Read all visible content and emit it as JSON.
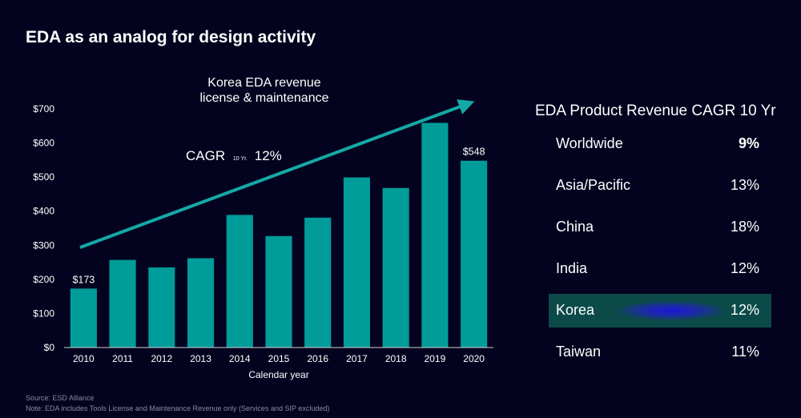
{
  "page": {
    "title": "EDA as an analog for design activity",
    "footnotes": [
      "Source: ESD Alliance",
      "Note: EDA includes Tools License and Maintenance Revenue only (Services and SIP excluded)"
    ]
  },
  "chart_data": {
    "type": "bar",
    "title": "",
    "xlabel": "Calendar year",
    "ylabel": "",
    "categories": [
      "2010",
      "2011",
      "2012",
      "2013",
      "2014",
      "2015",
      "2016",
      "2017",
      "2018",
      "2019",
      "2020"
    ],
    "values": [
      173,
      257,
      235,
      262,
      389,
      327,
      381,
      499,
      468,
      659,
      548
    ],
    "ylim": [
      0,
      700
    ],
    "yticks": [
      "$0",
      "$100",
      "$200",
      "$300",
      "$400",
      "$500",
      "$600",
      "$700"
    ],
    "data_labels": {
      "0": "$173",
      "10": "$548"
    },
    "bar_color": "#009c9a",
    "grid": false,
    "annotations": {
      "arrow_label_line1": "Korea EDA revenue",
      "arrow_label_line2": "license & maintenance",
      "cagr_prefix": "CAGR",
      "cagr_sub": "10 Yr.",
      "cagr_value": "12%"
    }
  },
  "cagr_table": {
    "title": "EDA Product Revenue CAGR 10 Yr",
    "rows": [
      {
        "region": "Worldwide",
        "value": "9%",
        "bold": true
      },
      {
        "region": "Asia/Pacific",
        "value": "13%"
      },
      {
        "region": "China",
        "value": "18%"
      },
      {
        "region": "India",
        "value": "12%"
      },
      {
        "region": "Korea",
        "value": "12%",
        "highlight": true
      },
      {
        "region": "Taiwan",
        "value": "11%"
      }
    ],
    "highlight_color": "#0c4a4a"
  }
}
